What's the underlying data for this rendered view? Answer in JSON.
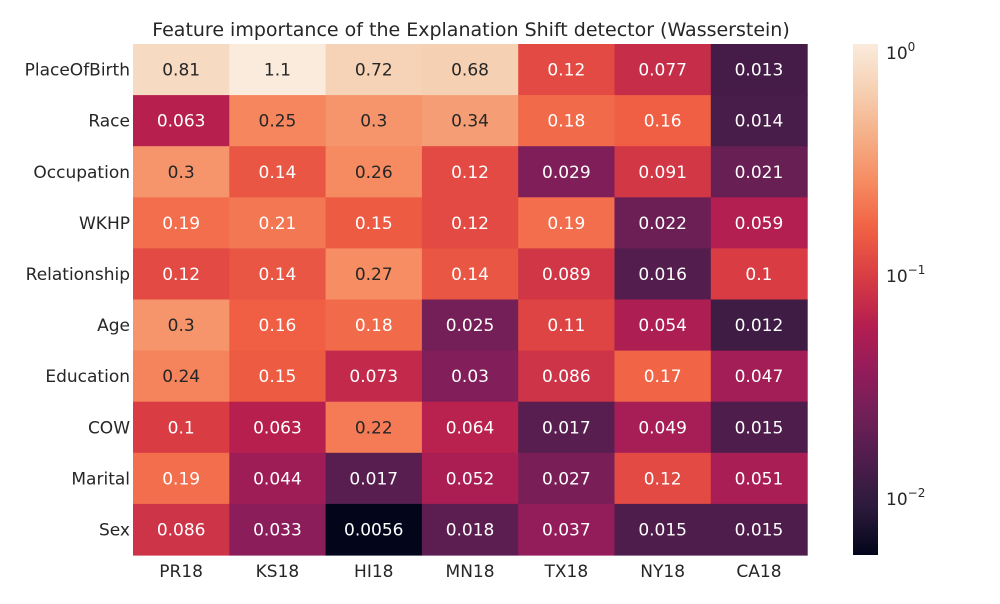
{
  "chart_data": {
    "type": "heatmap",
    "title": "Feature importance of the Explanation Shift detector (Wasserstein)",
    "xlabel": "",
    "ylabel": "",
    "x_categories": [
      "PR18",
      "KS18",
      "HI18",
      "MN18",
      "TX18",
      "NY18",
      "CA18"
    ],
    "y_categories": [
      "PlaceOfBirth",
      "Race",
      "Occupation",
      "WKHP",
      "Relationship",
      "Age",
      "Education",
      "COW",
      "Marital",
      "Sex"
    ],
    "values": [
      [
        0.81,
        1.1,
        0.72,
        0.68,
        0.12,
        0.077,
        0.013
      ],
      [
        0.063,
        0.25,
        0.3,
        0.34,
        0.18,
        0.16,
        0.014
      ],
      [
        0.3,
        0.14,
        0.26,
        0.12,
        0.029,
        0.091,
        0.021
      ],
      [
        0.19,
        0.21,
        0.15,
        0.12,
        0.19,
        0.022,
        0.059
      ],
      [
        0.12,
        0.14,
        0.27,
        0.14,
        0.089,
        0.016,
        0.1
      ],
      [
        0.3,
        0.16,
        0.18,
        0.025,
        0.11,
        0.054,
        0.012
      ],
      [
        0.24,
        0.15,
        0.073,
        0.03,
        0.086,
        0.17,
        0.047
      ],
      [
        0.1,
        0.063,
        0.22,
        0.064,
        0.017,
        0.049,
        0.015
      ],
      [
        0.19,
        0.044,
        0.017,
        0.052,
        0.027,
        0.12,
        0.051
      ],
      [
        0.086,
        0.033,
        0.0056,
        0.018,
        0.037,
        0.015,
        0.015
      ]
    ],
    "value_labels": [
      [
        "0.81",
        "1.1",
        "0.72",
        "0.68",
        "0.12",
        "0.077",
        "0.013"
      ],
      [
        "0.063",
        "0.25",
        "0.3",
        "0.34",
        "0.18",
        "0.16",
        "0.014"
      ],
      [
        "0.3",
        "0.14",
        "0.26",
        "0.12",
        "0.029",
        "0.091",
        "0.021"
      ],
      [
        "0.19",
        "0.21",
        "0.15",
        "0.12",
        "0.19",
        "0.022",
        "0.059"
      ],
      [
        "0.12",
        "0.14",
        "0.27",
        "0.14",
        "0.089",
        "0.016",
        "0.1"
      ],
      [
        "0.3",
        "0.16",
        "0.18",
        "0.025",
        "0.11",
        "0.054",
        "0.012"
      ],
      [
        "0.24",
        "0.15",
        "0.073",
        "0.03",
        "0.086",
        "0.17",
        "0.047"
      ],
      [
        "0.1",
        "0.063",
        "0.22",
        "0.064",
        "0.017",
        "0.049",
        "0.015"
      ],
      [
        "0.19",
        "0.044",
        "0.017",
        "0.052",
        "0.027",
        "0.12",
        "0.051"
      ],
      [
        "0.086",
        "0.033",
        "0.0056",
        "0.018",
        "0.037",
        "0.015",
        "0.015"
      ]
    ],
    "color_scale": "log",
    "colormap": "rocket",
    "vmin": 0.0056,
    "vmax": 1.1,
    "colorbar_ticks": [
      {
        "base": "10",
        "exp": "0",
        "value": 1
      },
      {
        "base": "10",
        "exp": "−1",
        "value": 0.1
      },
      {
        "base": "10",
        "exp": "−2",
        "value": 0.01
      }
    ],
    "colormap_stops": [
      "#03051a",
      "#2b1a3b",
      "#4c1d4b",
      "#701f57",
      "#951c5b",
      "#b61f4f",
      "#d93d43",
      "#f06043",
      "#f68a60",
      "#f5ae86",
      "#f6d0b2",
      "#faebdd"
    ],
    "grid": false,
    "legend": "colorbar-right"
  }
}
